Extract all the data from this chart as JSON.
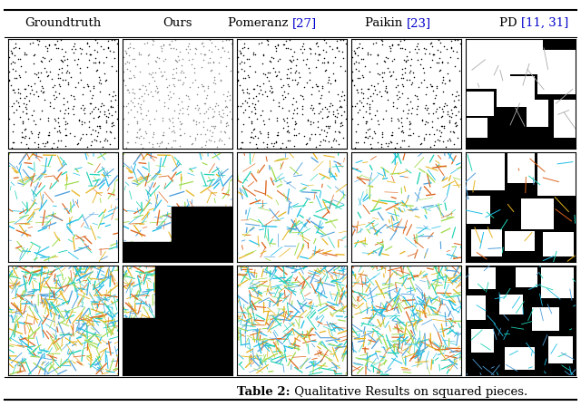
{
  "title": "Table 2: Qualitative Results on squared pieces.",
  "title_bold_part": "Table 2:",
  "title_normal_part": " Qualitative Results on squared pieces.",
  "col_headers_black": [
    "Groundtruth",
    "Ours",
    "Pomeranz ",
    "Paikin ",
    "PD "
  ],
  "col_headers_blue": [
    null,
    null,
    "[27]",
    "[23]",
    "[11, 31]"
  ],
  "n_rows": 3,
  "n_cols": 5,
  "figure_width": 6.4,
  "figure_height": 4.59,
  "dpi": 100,
  "background_color": "#ffffff",
  "border_color": "#000000",
  "header_fontsize": 9.5,
  "caption_fontsize": 9.5,
  "blue_color": "#0000cc"
}
